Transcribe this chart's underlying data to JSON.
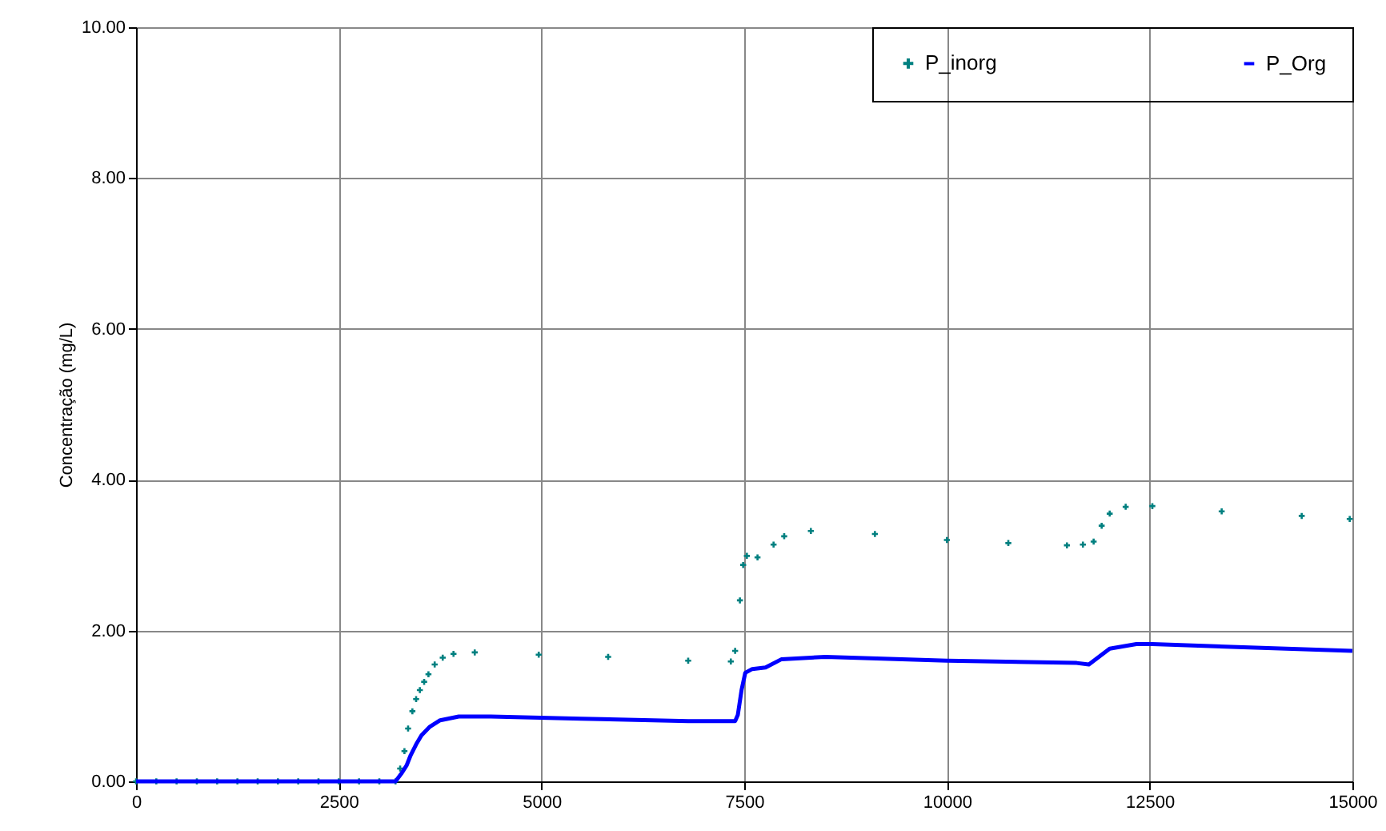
{
  "chart_data": {
    "type": "scatter",
    "ylabel": "Concentração (mg/L)",
    "xlim": [
      0,
      15000
    ],
    "ylim": [
      0,
      10
    ],
    "xticks": [
      0,
      2500,
      5000,
      7500,
      10000,
      12500,
      15000
    ],
    "yticks": [
      {
        "value": 0,
        "label": "0.00"
      },
      {
        "value": 2,
        "label": "2.00"
      },
      {
        "value": 4,
        "label": "4.00"
      },
      {
        "value": 6,
        "label": "6.00"
      },
      {
        "value": 8,
        "label": "8.00"
      },
      {
        "value": 10,
        "label": "10.00"
      }
    ],
    "grid": true,
    "legend": "top right",
    "series": [
      {
        "name": "P_inorg",
        "color": "#008080",
        "type": "scatter",
        "marker": "cross",
        "x": [
          0,
          250,
          500,
          750,
          1000,
          1250,
          1500,
          1750,
          2000,
          2250,
          2500,
          2750,
          3000,
          3200,
          3257,
          3310,
          3355,
          3408,
          3454,
          3500,
          3553,
          3606,
          3683,
          3782,
          3915,
          4177,
          4966,
          5822,
          6809,
          7335,
          7388,
          7447,
          7487,
          7533,
          7664,
          7862,
          7993,
          8322,
          9112,
          10000,
          10757,
          11480,
          11677,
          11809,
          11908,
          12007,
          12204,
          12533,
          13388,
          14375,
          14967
        ],
        "values": [
          0,
          0,
          0,
          0,
          0,
          0,
          0,
          0,
          0,
          0,
          0,
          0,
          0,
          0,
          0.17,
          0.4,
          0.7,
          0.93,
          1.09,
          1.21,
          1.32,
          1.42,
          1.55,
          1.64,
          1.69,
          1.71,
          1.68,
          1.65,
          1.6,
          1.59,
          1.73,
          2.4,
          2.87,
          2.99,
          2.97,
          3.14,
          3.25,
          3.32,
          3.28,
          3.2,
          3.16,
          3.13,
          3.14,
          3.18,
          3.39,
          3.55,
          3.64,
          3.65,
          3.58,
          3.52,
          3.48
        ]
      },
      {
        "name": "P_Org",
        "color": "#0000ff",
        "type": "line",
        "x": [
          0,
          500,
          1000,
          1500,
          2000,
          2500,
          3000,
          3200,
          3270,
          3336,
          3388,
          3454,
          3520,
          3618,
          3750,
          3980,
          4375,
          5493,
          6809,
          7388,
          7421,
          7467,
          7513,
          7599,
          7763,
          7961,
          8500,
          10000,
          11600,
          11750,
          12007,
          12336,
          12533,
          15000
        ],
        "values": [
          0,
          0,
          0,
          0,
          0,
          0,
          0,
          0,
          0.1,
          0.21,
          0.35,
          0.49,
          0.61,
          0.72,
          0.81,
          0.86,
          0.86,
          0.83,
          0.8,
          0.8,
          0.88,
          1.21,
          1.44,
          1.49,
          1.51,
          1.62,
          1.65,
          1.6,
          1.57,
          1.55,
          1.76,
          1.82,
          1.82,
          1.73
        ]
      }
    ]
  }
}
